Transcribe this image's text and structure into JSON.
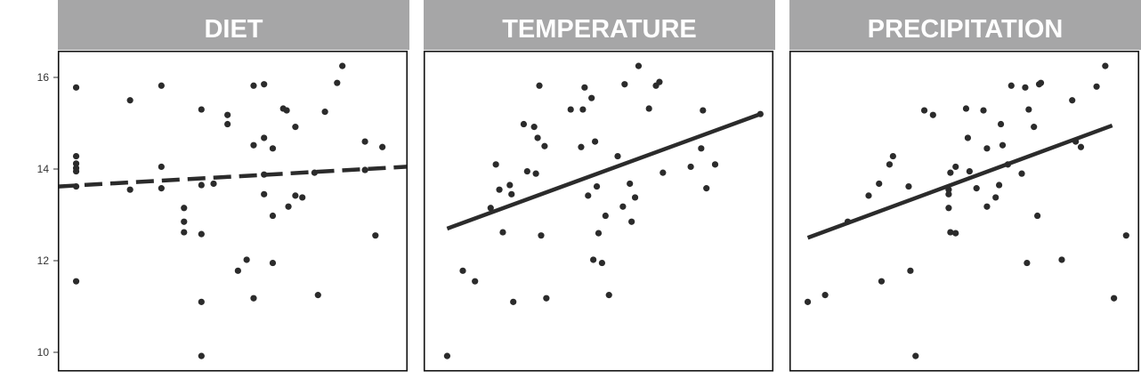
{
  "chart_data": {
    "type": "scatter",
    "ylim": [
      9.8,
      16.6
    ],
    "y_ticks": [
      "10",
      "12",
      "14",
      "16"
    ],
    "colors": {
      "strip": "#a6a6a7",
      "strip_text": "#ffffff",
      "points": "#2b2b2b",
      "line": "#2b2b2b"
    },
    "panels": [
      {
        "title": "DIET",
        "xlim": [
          0,
          1
        ],
        "trend": {
          "x": [
            0,
            1
          ],
          "y": [
            13.62,
            14.05
          ],
          "style": "dashed"
        },
        "points": [
          [
            0.05,
            15.78
          ],
          [
            0.05,
            14.28
          ],
          [
            0.05,
            14.12
          ],
          [
            0.05,
            14.02
          ],
          [
            0.05,
            13.95
          ],
          [
            0.05,
            13.62
          ],
          [
            0.05,
            11.55
          ],
          [
            0.205,
            15.5
          ],
          [
            0.205,
            13.55
          ],
          [
            0.295,
            15.82
          ],
          [
            0.295,
            14.05
          ],
          [
            0.295,
            13.58
          ],
          [
            0.36,
            13.15
          ],
          [
            0.36,
            12.85
          ],
          [
            0.36,
            12.62
          ],
          [
            0.41,
            15.3
          ],
          [
            0.41,
            13.65
          ],
          [
            0.41,
            12.58
          ],
          [
            0.41,
            11.1
          ],
          [
            0.41,
            9.92
          ],
          [
            0.445,
            13.68
          ],
          [
            0.485,
            15.18
          ],
          [
            0.485,
            14.98
          ],
          [
            0.515,
            11.78
          ],
          [
            0.54,
            12.02
          ],
          [
            0.56,
            15.82
          ],
          [
            0.56,
            14.52
          ],
          [
            0.56,
            11.18
          ],
          [
            0.59,
            15.85
          ],
          [
            0.59,
            14.68
          ],
          [
            0.59,
            13.88
          ],
          [
            0.59,
            13.45
          ],
          [
            0.615,
            14.45
          ],
          [
            0.615,
            12.98
          ],
          [
            0.615,
            11.95
          ],
          [
            0.645,
            15.32
          ],
          [
            0.655,
            15.28
          ],
          [
            0.66,
            13.18
          ],
          [
            0.68,
            14.92
          ],
          [
            0.68,
            13.42
          ],
          [
            0.7,
            13.38
          ],
          [
            0.735,
            13.92
          ],
          [
            0.745,
            11.25
          ],
          [
            0.765,
            15.25
          ],
          [
            0.8,
            15.88
          ],
          [
            0.815,
            16.25
          ],
          [
            0.88,
            14.6
          ],
          [
            0.88,
            13.98
          ],
          [
            0.91,
            12.55
          ],
          [
            0.93,
            14.48
          ]
        ]
      },
      {
        "title": "TEMPERATURE",
        "xlim": [
          0,
          1
        ],
        "trend": {
          "x": [
            0.065,
            0.965
          ],
          "y": [
            12.7,
            15.2
          ],
          "style": "solid"
        },
        "points": [
          [
            0.065,
            9.92
          ],
          [
            0.11,
            11.78
          ],
          [
            0.145,
            11.55
          ],
          [
            0.19,
            13.15
          ],
          [
            0.205,
            14.1
          ],
          [
            0.215,
            13.55
          ],
          [
            0.225,
            12.62
          ],
          [
            0.245,
            13.65
          ],
          [
            0.25,
            13.45
          ],
          [
            0.255,
            11.1
          ],
          [
            0.285,
            14.98
          ],
          [
            0.295,
            13.95
          ],
          [
            0.315,
            14.92
          ],
          [
            0.32,
            13.9
          ],
          [
            0.325,
            14.68
          ],
          [
            0.33,
            15.82
          ],
          [
            0.335,
            12.55
          ],
          [
            0.345,
            14.5
          ],
          [
            0.35,
            11.18
          ],
          [
            0.42,
            15.3
          ],
          [
            0.45,
            14.48
          ],
          [
            0.455,
            15.3
          ],
          [
            0.46,
            15.78
          ],
          [
            0.47,
            13.42
          ],
          [
            0.48,
            15.55
          ],
          [
            0.485,
            12.02
          ],
          [
            0.49,
            14.6
          ],
          [
            0.495,
            13.62
          ],
          [
            0.5,
            12.6
          ],
          [
            0.51,
            11.95
          ],
          [
            0.52,
            12.98
          ],
          [
            0.53,
            11.25
          ],
          [
            0.555,
            14.28
          ],
          [
            0.57,
            13.18
          ],
          [
            0.575,
            15.85
          ],
          [
            0.59,
            13.68
          ],
          [
            0.595,
            12.85
          ],
          [
            0.605,
            13.38
          ],
          [
            0.615,
            16.25
          ],
          [
            0.645,
            15.32
          ],
          [
            0.665,
            15.82
          ],
          [
            0.675,
            15.9
          ],
          [
            0.685,
            13.92
          ],
          [
            0.765,
            14.05
          ],
          [
            0.795,
            14.45
          ],
          [
            0.8,
            15.28
          ],
          [
            0.81,
            13.58
          ],
          [
            0.835,
            14.1
          ],
          [
            0.965,
            15.2
          ]
        ]
      },
      {
        "title": "PRECIPITATION",
        "xlim": [
          0,
          1
        ],
        "trend": {
          "x": [
            0.05,
            0.925
          ],
          "y": [
            12.5,
            14.95
          ],
          "style": "solid"
        },
        "points": [
          [
            0.05,
            11.1
          ],
          [
            0.1,
            11.25
          ],
          [
            0.165,
            12.85
          ],
          [
            0.225,
            13.42
          ],
          [
            0.255,
            13.68
          ],
          [
            0.262,
            11.55
          ],
          [
            0.285,
            14.1
          ],
          [
            0.295,
            14.28
          ],
          [
            0.34,
            13.62
          ],
          [
            0.345,
            11.78
          ],
          [
            0.36,
            9.92
          ],
          [
            0.385,
            15.28
          ],
          [
            0.41,
            15.18
          ],
          [
            0.455,
            13.55
          ],
          [
            0.455,
            13.45
          ],
          [
            0.455,
            13.15
          ],
          [
            0.46,
            13.92
          ],
          [
            0.46,
            12.62
          ],
          [
            0.475,
            14.05
          ],
          [
            0.475,
            12.6
          ],
          [
            0.505,
            15.32
          ],
          [
            0.51,
            14.68
          ],
          [
            0.515,
            13.95
          ],
          [
            0.535,
            13.58
          ],
          [
            0.555,
            15.28
          ],
          [
            0.565,
            13.18
          ],
          [
            0.565,
            14.45
          ],
          [
            0.59,
            13.38
          ],
          [
            0.6,
            13.65
          ],
          [
            0.605,
            14.98
          ],
          [
            0.61,
            14.52
          ],
          [
            0.625,
            14.1
          ],
          [
            0.635,
            15.82
          ],
          [
            0.665,
            13.9
          ],
          [
            0.675,
            15.78
          ],
          [
            0.68,
            11.95
          ],
          [
            0.685,
            15.3
          ],
          [
            0.7,
            14.92
          ],
          [
            0.71,
            12.98
          ],
          [
            0.715,
            15.85
          ],
          [
            0.72,
            15.88
          ],
          [
            0.78,
            12.02
          ],
          [
            0.81,
            15.5
          ],
          [
            0.82,
            14.6
          ],
          [
            0.835,
            14.48
          ],
          [
            0.88,
            15.8
          ],
          [
            0.905,
            16.25
          ],
          [
            0.93,
            11.18
          ],
          [
            0.965,
            12.55
          ]
        ]
      }
    ]
  }
}
